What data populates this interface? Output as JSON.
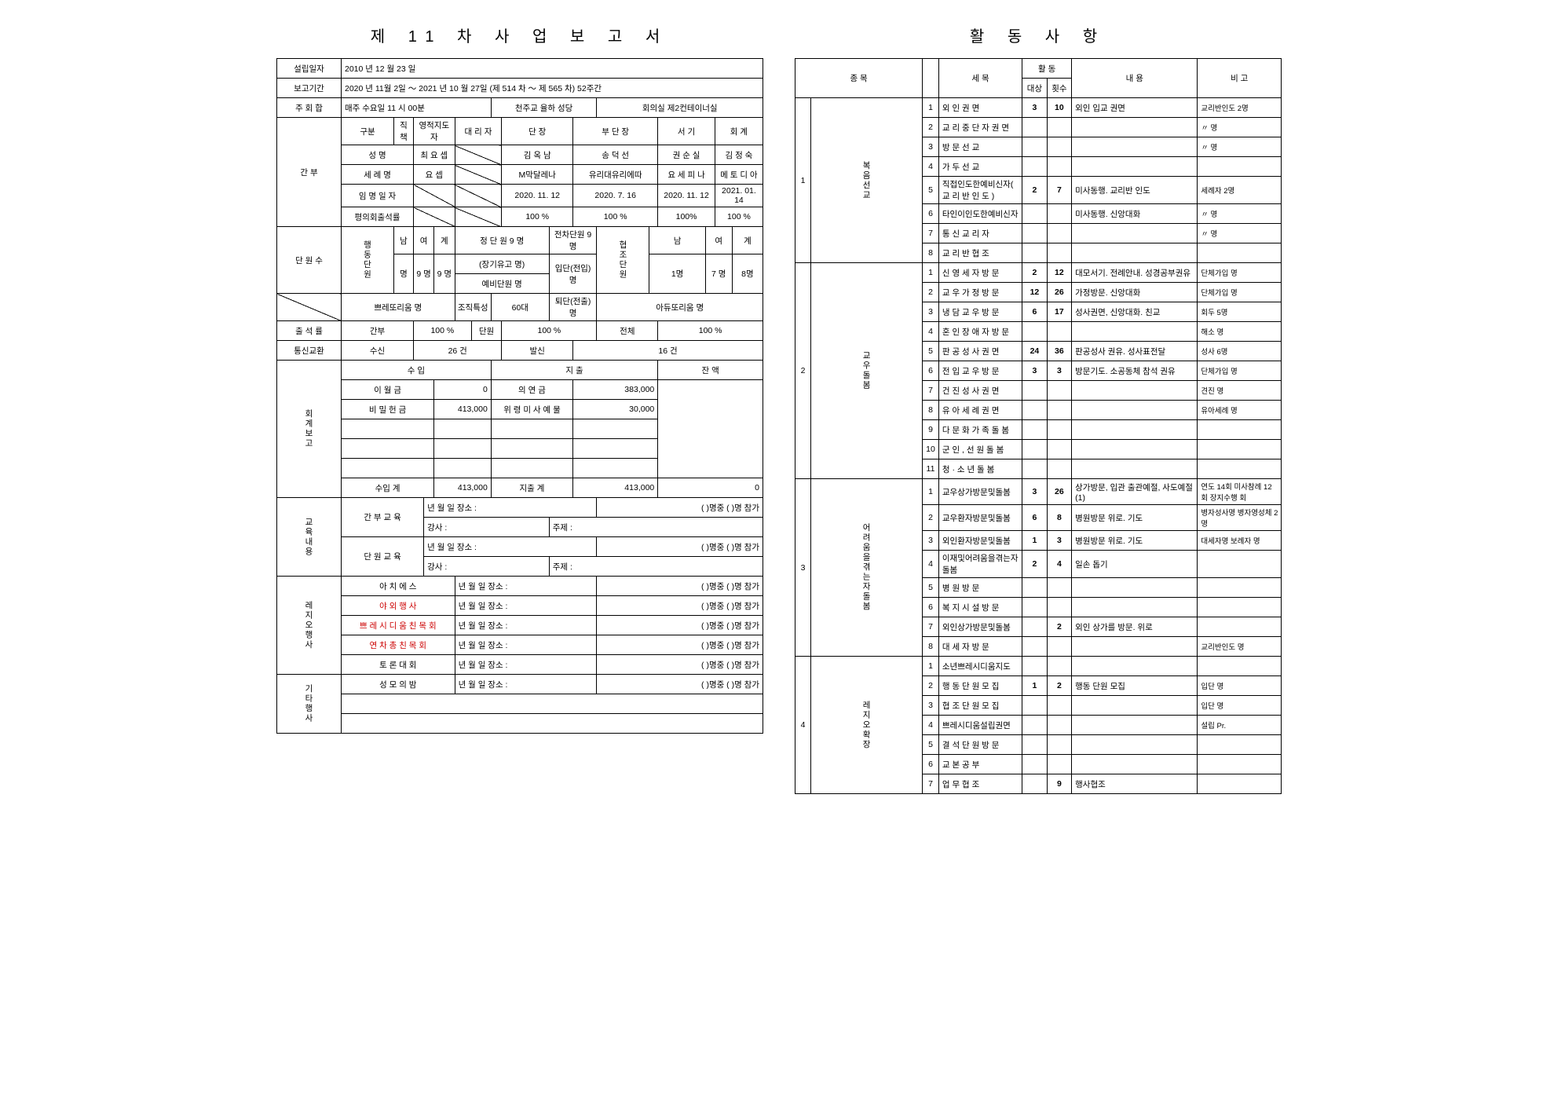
{
  "left": {
    "title": "제 11 차 사 업 보 고 서",
    "established_label": "설립일자",
    "established": "2010 년   12 월 23 일",
    "period_label": "보고기간",
    "period": "2020 년  11월  2일 ～ 2021 년  10 월 27일 (제 514 차 ～ 제 565 차) 52주간",
    "meeting_label": "주 회 합",
    "meeting_day": "매주   수요일  11 시  00분",
    "meeting_place": "천주교  율하  성당",
    "meeting_room": "회의실 제2컨테이너실",
    "officers": {
      "section": "간   부",
      "row1": [
        "구분",
        "직책",
        "영적지도자",
        "대  리  자",
        "단       장",
        "부   단   장",
        "서       기",
        "회       계"
      ],
      "row2": [
        "성       명",
        "최  요  셉",
        "",
        "김  옥  남",
        "송  덕  선",
        "권  순  실",
        "김  정  숙"
      ],
      "row3": [
        "세 례 명",
        "요     셉",
        "",
        "M막달레나",
        "유리대유리에따",
        "요 세 피 나",
        "메 토 디 아"
      ],
      "row4": [
        "임 명 일 자",
        "",
        "",
        "2020. 11. 12",
        "2020. 7. 16",
        "2020. 11. 12",
        "2021. 01. 14"
      ],
      "row5": [
        "평의회출석률",
        "",
        "",
        "100  %",
        "100 %",
        "100%",
        "100 %"
      ]
    },
    "members": {
      "section": "단 원 수",
      "vhead": "행동단원",
      "hdr": [
        "남",
        "여",
        "계"
      ],
      "vals": [
        "명",
        "9 명",
        "9 명"
      ],
      "r1": [
        "정 단 원  9 명",
        "전차단원 9 명"
      ],
      "r2": [
        "(장기유고   명)",
        "입단(전입)  명"
      ],
      "r3": [
        "예비단원    명",
        ""
      ],
      "aux_v": "협조단원",
      "aux": [
        "남",
        "여",
        "계",
        "1명",
        "7 명",
        "8명"
      ],
      "pres": [
        "쁘레또리움      명",
        "조직특성",
        "60대",
        "퇴단(전출)  명",
        "아듀또리움      명"
      ]
    },
    "attend": {
      "label": "출 석 률",
      "a": "간부",
      "av": "100   %",
      "b": "단원",
      "bv": "100   %",
      "c": "전체",
      "cv": "100   %"
    },
    "comm": {
      "label": "통신교환",
      "recv": "수신",
      "recv_v": "26   건",
      "send": "발신",
      "send_v": "16   건"
    },
    "finance": {
      "section": "회계보고",
      "h": [
        "수       입",
        "지       출",
        "잔  액"
      ],
      "r1": [
        "이   월   금",
        "0",
        "의   연   금",
        "383,000",
        ""
      ],
      "r2": [
        "비  밀  헌  금",
        "413,000",
        "위 령 미 사 예 물",
        "30,000",
        ""
      ],
      "sum": [
        "수입  계",
        "413,000",
        "지출  계",
        "413,000",
        "0"
      ]
    },
    "edu": {
      "section": "교육내용",
      "l1": "간 부 교 육",
      "l2": "단 원 교 육",
      "date": "년   월   일   장소 :",
      "teacher": "강사 :",
      "subj": "주제 :",
      "att": "(  )명중 (  )명 참가"
    },
    "events": {
      "section": "레지오행사",
      "rows": [
        {
          "t": "아   치   에   스",
          "red": false
        },
        {
          "t": "야   외   행   사",
          "red": true
        },
        {
          "t": "쁘 레 시 디 움 친 목 회",
          "red": true
        },
        {
          "t": "연  차  총  친  목  회",
          "red": true
        },
        {
          "t": "토   론   대   회",
          "red": false
        }
      ],
      "tail": "년    월    일 장소 :",
      "att": "(    )명중 (  )명 참가"
    },
    "other": {
      "section": "기타행사",
      "t": "성   모   의   밤",
      "tail": "년   월   일 장소 :",
      "att": "(   )명중 (  )명 참가"
    }
  },
  "right": {
    "title": "활   동   사   항",
    "head": [
      "종 목",
      "세       목",
      "활  동",
      "내       용",
      "비      고"
    ],
    "sub": [
      "대상",
      "횟수"
    ],
    "g1": {
      "v": "1",
      "v2": "복음선교",
      "rows": [
        {
          "n": "1",
          "t": "외  인  권  면",
          "a": "3",
          "b": "10",
          "c": "외인 입교 권면",
          "d": "교리반인도    2명"
        },
        {
          "n": "2",
          "t": "교 리 중 단 자 권 면",
          "a": "",
          "b": "",
          "c": "",
          "d": "〃         명"
        },
        {
          "n": "3",
          "t": "방   문   선   교",
          "a": "",
          "b": "",
          "c": "",
          "d": "〃         명"
        },
        {
          "n": "4",
          "t": "가   두   선   교",
          "a": "",
          "b": "",
          "c": "",
          "d": ""
        },
        {
          "n": "5",
          "t": "직접인도한예비신자( 교 리 반 인 도 )",
          "a": "2",
          "b": "7",
          "c": "미사동행. 교리반 인도",
          "d": "세례자      2명"
        },
        {
          "n": "6",
          "t": "타인이인도한예비신자",
          "a": "",
          "b": "",
          "c": "미사동행. 신앙대화",
          "d": "〃         명"
        },
        {
          "n": "7",
          "t": "통  신  교  리  자",
          "a": "",
          "b": "",
          "c": "",
          "d": "〃         명"
        },
        {
          "n": "8",
          "t": "교  리  반  협  조",
          "a": "",
          "b": "",
          "c": "",
          "d": ""
        }
      ]
    },
    "g2": {
      "v": "2",
      "v2": "교우돌봄",
      "rows": [
        {
          "n": "1",
          "t": "신 영 세 자 방 문",
          "a": "2",
          "b": "12",
          "c": "대모서기. 전례안내. 성경공부권유",
          "d": "단체가입     명"
        },
        {
          "n": "2",
          "t": "교 우 가 정 방 문",
          "a": "12",
          "b": "26",
          "c": "가정방문. 신앙대화",
          "d": "단체가입     명"
        },
        {
          "n": "3",
          "t": "냉 담 교 우 방 문",
          "a": "6",
          "b": "17",
          "c": "성사권면, 신앙대화. 친교",
          "d": "회두       5명"
        },
        {
          "n": "4",
          "t": "혼 인 장 애 자 방 문",
          "a": "",
          "b": "",
          "c": "",
          "d": "해소        명"
        },
        {
          "n": "5",
          "t": "판 공 성 사 권 면",
          "a": "24",
          "b": "36",
          "c": "판공성사 권유. 성사표전달",
          "d": "성사       6명"
        },
        {
          "n": "6",
          "t": "전 입 교 우 방 문",
          "a": "3",
          "b": "3",
          "c": "방문기도. 소공동체 참석 권유",
          "d": "단체가입     명"
        },
        {
          "n": "7",
          "t": "건 진 성 사 권 면",
          "a": "",
          "b": "",
          "c": "",
          "d": "견진        명"
        },
        {
          "n": "8",
          "t": "유 아 세 례 권 면",
          "a": "",
          "b": "",
          "c": "",
          "d": "유아세례     명"
        },
        {
          "n": "9",
          "t": "다 문 화 가 족 돌 봄",
          "a": "",
          "b": "",
          "c": "",
          "d": ""
        },
        {
          "n": "10",
          "t": "군 인 , 선 원 돌 봄",
          "a": "",
          "b": "",
          "c": "",
          "d": ""
        },
        {
          "n": "11",
          "t": "청 · 소 년 돌 봄",
          "a": "",
          "b": "",
          "c": "",
          "d": ""
        }
      ]
    },
    "g3": {
      "v": "3",
      "v2": "어려움을겪는자돌봄",
      "rows": [
        {
          "n": "1",
          "t": "교우상가방문및돌봄",
          "a": "3",
          "b": "26",
          "c": "상가방문, 입관 출관예절, 사도예절(1)",
          "d": "연도 14회 미사참례 12회 장지수행 회"
        },
        {
          "n": "2",
          "t": "교우환자방문및돌봄",
          "a": "6",
          "b": "8",
          "c": "병원방문 위로. 기도",
          "d": "병자성사명 병자영성체 2명"
        },
        {
          "n": "3",
          "t": "외인환자방문및돌봄",
          "a": "1",
          "b": "3",
          "c": "병원방문 위로. 기도",
          "d": "대세자명 보례자 명"
        },
        {
          "n": "4",
          "t": "이재및어려움을겪는자돌봄",
          "a": "2",
          "b": "4",
          "c": "일손 돕기",
          "d": ""
        },
        {
          "n": "5",
          "t": "병   원   방   문",
          "a": "",
          "b": "",
          "c": "",
          "d": ""
        },
        {
          "n": "6",
          "t": "복 지 시 설 방 문",
          "a": "",
          "b": "",
          "c": "",
          "d": ""
        },
        {
          "n": "7",
          "t": "외인상가방문및돌봄",
          "a": "",
          "b": "2",
          "c": "외인 상가를 방문. 위로",
          "d": ""
        },
        {
          "n": "8",
          "t": "대  세  자  방  문",
          "a": "",
          "b": "",
          "c": "",
          "d": "교리반인도    명"
        }
      ]
    },
    "g4": {
      "v": "4",
      "v2": "레지오확장",
      "rows": [
        {
          "n": "1",
          "t": "소년쁘레시디움지도",
          "a": "",
          "b": "",
          "c": "",
          "d": ""
        },
        {
          "n": "2",
          "t": "행 동 단 원 모 집",
          "a": "1",
          "b": "2",
          "c": "행동 단원 모집",
          "d": "입단        명"
        },
        {
          "n": "3",
          "t": "협 조 단 원 모 집",
          "a": "",
          "b": "",
          "c": "",
          "d": "입단        명"
        },
        {
          "n": "4",
          "t": "쁘레시디움설립권면",
          "a": "",
          "b": "",
          "c": "",
          "d": "설립       Pr."
        },
        {
          "n": "5",
          "t": "결 석 단 원 방 문",
          "a": "",
          "b": "",
          "c": "",
          "d": ""
        },
        {
          "n": "6",
          "t": "교   본   공   부",
          "a": "",
          "b": "",
          "c": "",
          "d": ""
        },
        {
          "n": "7",
          "t": "업   무   협   조",
          "a": "",
          "b": "9",
          "c": "행사협조",
          "d": ""
        }
      ]
    }
  }
}
